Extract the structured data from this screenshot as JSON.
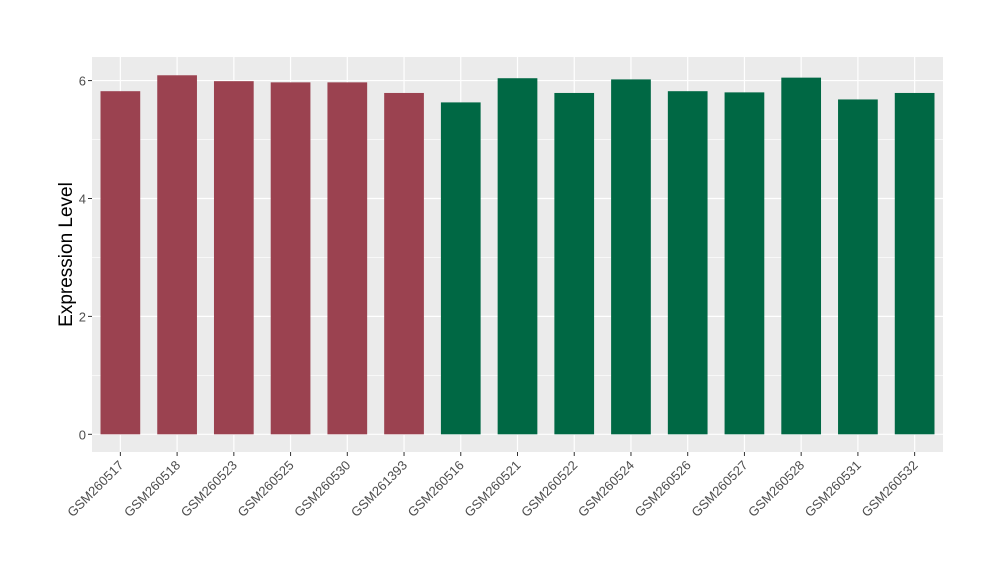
{
  "chart_data": {
    "type": "bar",
    "title": "",
    "xlabel": "",
    "ylabel": "Expression Level",
    "ylim": [
      -0.3,
      6.4
    ],
    "yticks": [
      0,
      2,
      4,
      6
    ],
    "grid": true,
    "legend": "none",
    "categories": [
      "GSM260517",
      "GSM260518",
      "GSM260523",
      "GSM260525",
      "GSM260530",
      "GSM261393",
      "GSM260516",
      "GSM260521",
      "GSM260522",
      "GSM260524",
      "GSM260526",
      "GSM260527",
      "GSM260528",
      "GSM260531",
      "GSM260532"
    ],
    "values": [
      5.82,
      6.09,
      5.99,
      5.97,
      5.97,
      5.79,
      5.63,
      6.04,
      5.79,
      6.02,
      5.82,
      5.8,
      6.05,
      5.68,
      5.79
    ],
    "bar_colors": [
      "#9b4250",
      "#9b4250",
      "#9b4250",
      "#9b4250",
      "#9b4250",
      "#9b4250",
      "#006844",
      "#006844",
      "#006844",
      "#006844",
      "#006844",
      "#006844",
      "#006844",
      "#006844",
      "#006844"
    ],
    "colors": {
      "panel_background": "#ebebeb",
      "grid": "#ffffff",
      "axis_text": "#4d4d4d"
    }
  }
}
